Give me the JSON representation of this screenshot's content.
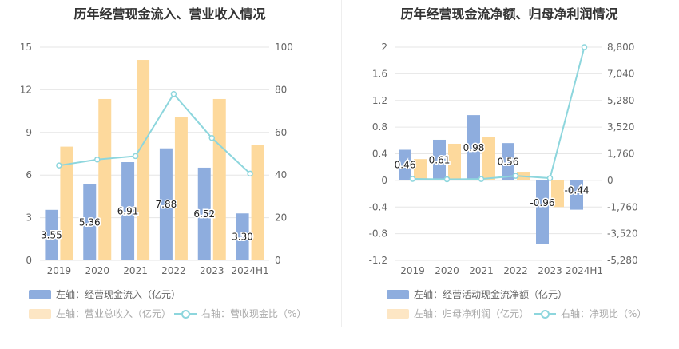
{
  "colors": {
    "bar_primary": "#8eadde",
    "bar_secondary": "#fdd99c",
    "line": "#8dd6dd",
    "grid": "#e6e6e6",
    "axis_text": "#666666"
  },
  "chart_data": [
    {
      "type": "bar",
      "title": "历年经营现金流入、营业收入情况",
      "categories": [
        "2019",
        "2020",
        "2021",
        "2022",
        "2023",
        "2024H1"
      ],
      "y_left": {
        "ticks": [
          0,
          3,
          6,
          9,
          12,
          15
        ],
        "min": 0,
        "max": 15
      },
      "y_right": {
        "ticks": [
          0,
          20,
          40,
          60,
          80,
          100
        ],
        "min": 0,
        "max": 100
      },
      "series": [
        {
          "name": "左轴：经营现金流入（亿元）",
          "kind": "bar",
          "axis": "left",
          "values": [
            3.55,
            5.36,
            6.91,
            7.88,
            6.52,
            3.3
          ],
          "labels": [
            "3.55",
            "5.36",
            "6.91",
            "7.88",
            "6.52",
            "3.30"
          ]
        },
        {
          "name": "左轴：营业总收入（亿元）",
          "kind": "bar",
          "axis": "left",
          "values": [
            8.0,
            11.35,
            14.1,
            10.1,
            11.35,
            8.1
          ]
        },
        {
          "name": "右轴：营收现金比（%）",
          "kind": "line",
          "axis": "right",
          "values": [
            44.5,
            47.3,
            48.9,
            78.0,
            57.4,
            40.7
          ]
        }
      ],
      "legend_placement": "bottom",
      "grid": true
    },
    {
      "type": "bar",
      "title": "历年经营现金流净额、归母净利润情况",
      "categories": [
        "2019",
        "2020",
        "2021",
        "2022",
        "2023",
        "2024H1"
      ],
      "y_left": {
        "ticks": [
          -1.2,
          -0.8,
          -0.4,
          0,
          0.4,
          0.8,
          1.2,
          1.6,
          2
        ],
        "labels": [
          "-1.2",
          "-0.8",
          "-0.4",
          "0",
          "0.4",
          "0.8",
          "1.2",
          "1.6",
          "2"
        ],
        "min": -1.2,
        "max": 2
      },
      "y_right": {
        "ticks": [
          -5280,
          -3520,
          -1760,
          0,
          1760,
          3520,
          5280,
          7040,
          8800
        ],
        "labels": [
          "-5,280",
          "-3,520",
          "-1,760",
          "0",
          "1,760",
          "3,520",
          "5,280",
          "7,040",
          "8,800"
        ],
        "min": -5280,
        "max": 8800
      },
      "series": [
        {
          "name": "左轴：经营活动现金流净额（亿元）",
          "kind": "bar",
          "axis": "left",
          "values": [
            0.46,
            0.61,
            0.98,
            0.56,
            -0.96,
            -0.44
          ],
          "labels": [
            "0.46",
            "0.61",
            "0.98",
            "0.56",
            "-0.96",
            "-0.44"
          ]
        },
        {
          "name": "左轴：归母净利润（亿元）",
          "kind": "bar",
          "axis": "left",
          "values": [
            0.32,
            0.55,
            0.65,
            0.13,
            -0.4,
            0.0
          ]
        },
        {
          "name": "右轴：净现比（%）",
          "kind": "line",
          "axis": "right",
          "values": [
            100,
            75,
            90,
            300,
            150,
            8800
          ]
        }
      ],
      "legend_placement": "bottom",
      "grid": true
    }
  ]
}
